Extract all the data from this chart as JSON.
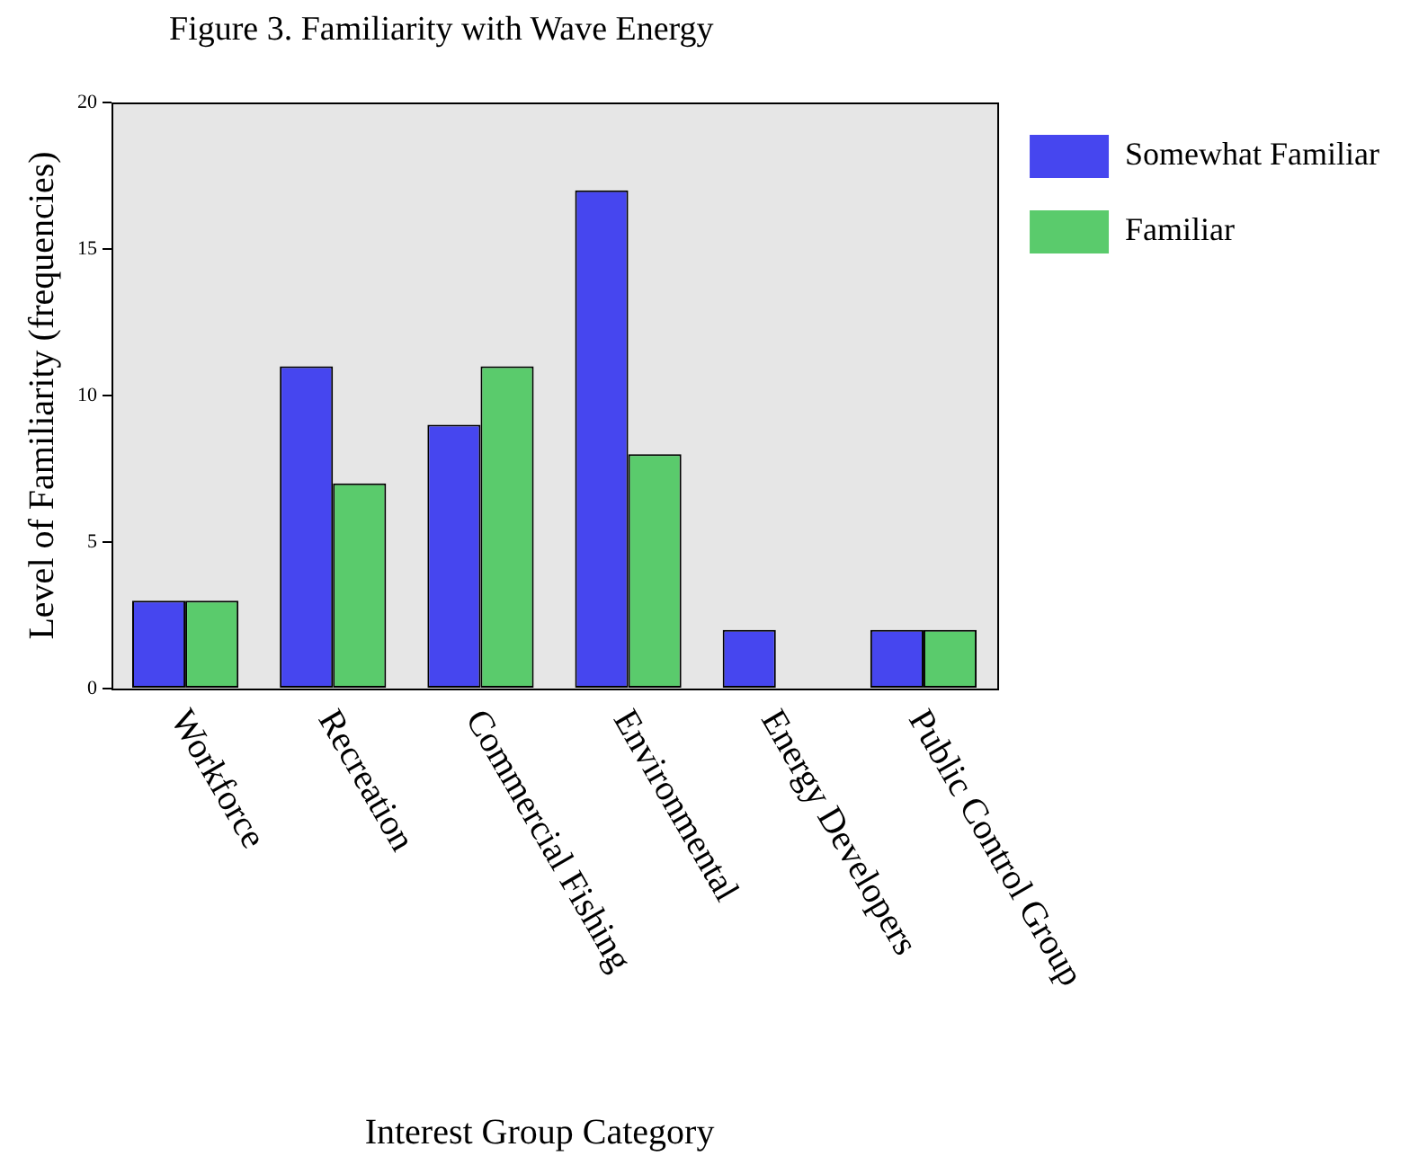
{
  "chart_data": {
    "type": "bar",
    "title": "Figure 3. Familiarity with Wave Energy",
    "xlabel": "Interest Group Category",
    "ylabel": "Level of Familiarity (frequencies)",
    "categories": [
      "Workforce",
      "Recreation",
      "Commercial Fishing",
      "Environmental",
      "Energy Developers",
      "Public Control Group"
    ],
    "series": [
      {
        "name": "Somewhat Familiar",
        "color": "#4646ef",
        "values": [
          3,
          11,
          9,
          17,
          2,
          2
        ]
      },
      {
        "name": "Familiar",
        "color": "#5acb6c",
        "values": [
          3,
          7,
          11,
          8,
          0,
          2
        ]
      }
    ],
    "ylim": [
      0,
      20
    ],
    "yticks": [
      0,
      5,
      10,
      15,
      20
    ],
    "grid": false,
    "legend": "right"
  }
}
